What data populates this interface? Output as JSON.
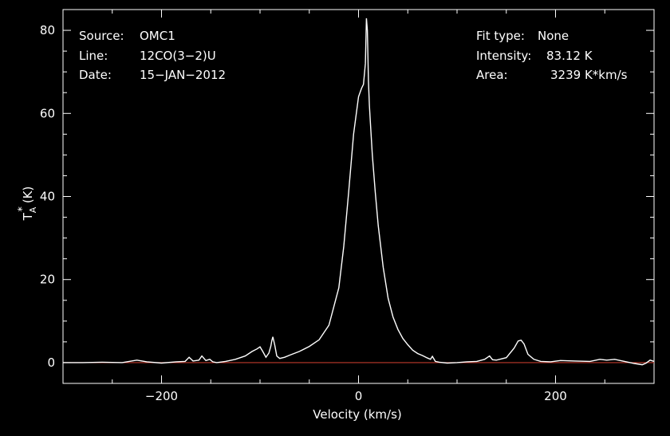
{
  "chart_data": {
    "type": "line",
    "xlabel": "Velocity (km/s)",
    "ylabel": "T",
    "ylabel_sub": "A",
    "ylabel_sup": "*",
    "ylabel_unit": "(K)",
    "xlim": [
      -300,
      300
    ],
    "ylim": [
      -5,
      85
    ],
    "xticks": [
      -200,
      0,
      200
    ],
    "xtick_labels": [
      "−200",
      "0",
      "200"
    ],
    "yticks": [
      0,
      20,
      40,
      60,
      80
    ],
    "ytick_labels": [
      "0",
      "20",
      "40",
      "60",
      "80"
    ],
    "grid": false,
    "background": "#000000",
    "line_color": "#ffffff",
    "baseline_color": "#c0392b",
    "baseline_y": 0,
    "info_left": [
      {
        "label": "Source:",
        "value": "OMC1"
      },
      {
        "label": "Line:",
        "value": "12CO(3−2)U"
      },
      {
        "label": "Date:",
        "value": "15−JAN−2012"
      }
    ],
    "info_right": [
      {
        "label": "Fit type:",
        "value": "None"
      },
      {
        "label": "Intensity:",
        "value": "83.12 K"
      },
      {
        "label": "Area:",
        "value": "3239 K*km/s"
      }
    ],
    "series": [
      {
        "x": [
          -300,
          -280,
          -260,
          -240,
          -225,
          -215,
          -200,
          -185,
          -176,
          -172,
          -168,
          -162,
          -159,
          -155,
          -151,
          -148,
          -144,
          -135,
          -125,
          -115,
          -108,
          -103,
          -100,
          -97,
          -94,
          -91,
          -89,
          -88,
          -87,
          -85,
          -83,
          -80,
          -75,
          -70,
          -60,
          -50,
          -40,
          -30,
          -20,
          -15,
          -10,
          -5,
          0,
          3,
          5,
          7,
          8,
          9,
          10,
          11,
          12,
          14,
          17,
          20,
          25,
          30,
          35,
          40,
          45,
          50,
          55,
          60,
          65,
          70,
          73,
          75,
          78,
          82,
          90,
          100,
          110,
          120,
          128,
          133,
          136,
          140,
          150,
          158,
          162,
          165,
          168,
          172,
          178,
          185,
          195,
          205,
          220,
          235,
          245,
          252,
          260,
          270,
          280,
          288,
          292,
          296,
          300
        ],
        "y": [
          0,
          0,
          0.1,
          0,
          0.6,
          0.2,
          -0.1,
          0.2,
          0.3,
          1.3,
          0.4,
          0.6,
          1.6,
          0.5,
          0.8,
          0.2,
          0,
          0.3,
          0.8,
          1.6,
          2.7,
          3.3,
          3.8,
          2.6,
          1.3,
          2.3,
          4.0,
          5.3,
          6.2,
          4.2,
          1.6,
          1.0,
          1.3,
          1.8,
          2.7,
          3.9,
          5.5,
          9.0,
          18.0,
          28.0,
          41.0,
          55.0,
          64.0,
          66.0,
          67.0,
          72.0,
          82.9,
          80.0,
          68.0,
          62.0,
          58.0,
          50.0,
          41.0,
          33.0,
          23.0,
          15.5,
          11.0,
          8.0,
          5.8,
          4.3,
          3.0,
          2.2,
          1.7,
          1.1,
          0.8,
          1.5,
          0.3,
          0.1,
          -0.1,
          0,
          0.2,
          0.3,
          0.8,
          1.6,
          0.7,
          0.6,
          1.2,
          3.5,
          5.2,
          5.4,
          4.5,
          2.0,
          0.8,
          0.3,
          0.2,
          0.5,
          0.4,
          0.3,
          0.8,
          0.6,
          0.8,
          0.3,
          -0.2,
          -0.5,
          -0.1,
          0.6,
          0.3
        ]
      }
    ]
  }
}
